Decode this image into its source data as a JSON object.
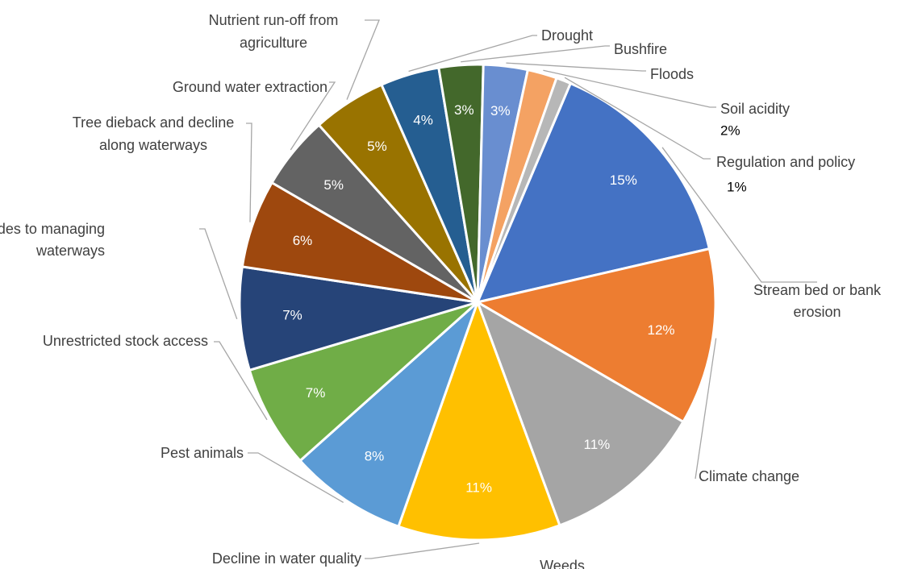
{
  "chart_data": {
    "type": "pie",
    "title": "",
    "slices": [
      {
        "label": "Stream bed or bank erosion",
        "value_label": "15%",
        "value": 15,
        "color": "#4472c4"
      },
      {
        "label": "Climate change",
        "value_label": "12%",
        "value": 12,
        "color": "#ed7d31"
      },
      {
        "label": "Weeds",
        "value_label": "11%",
        "value": 11,
        "color": "#a5a5a5"
      },
      {
        "label": "Decline in water quality",
        "value_label": "11%",
        "value": 11,
        "color": "#ffc000"
      },
      {
        "label": "Pest animals",
        "value_label": "8%",
        "value": 8,
        "color": "#5b9bd5"
      },
      {
        "label": "Unrestricted stock access",
        "value_label": "7%",
        "value": 7,
        "color": "#70ad47"
      },
      {
        "label": "Attitudes to managing waterways",
        "value_label": "7%",
        "value": 7,
        "color": "#264478"
      },
      {
        "label": "Tree dieback and decline along waterways",
        "value_label": "6%",
        "value": 6,
        "color": "#9e480e"
      },
      {
        "label": "Ground water extraction",
        "value_label": "5%",
        "value": 5,
        "color": "#636363"
      },
      {
        "label": "Nutrient run-off from agriculture",
        "value_label": "5%",
        "value": 5,
        "color": "#997300"
      },
      {
        "label": "Drought",
        "value_label": "4%",
        "value": 4,
        "color": "#255e91"
      },
      {
        "label": "Bushfire",
        "value_label": "3%",
        "value": 3,
        "color": "#43682b"
      },
      {
        "label": "Floods",
        "value_label": "3%",
        "value": 3,
        "color": "#698ed0"
      },
      {
        "label": "Soil acidity",
        "value_label": "2%",
        "value": 2,
        "color": "#f4a263"
      },
      {
        "label": "Regulation and policy",
        "value_label": "1%",
        "value": 1,
        "color": "#b7b7b7"
      }
    ]
  }
}
